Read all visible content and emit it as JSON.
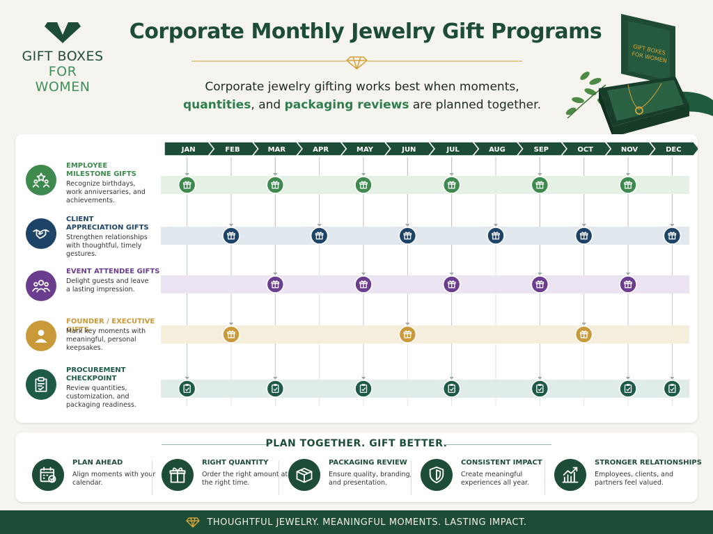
{
  "brand": {
    "line1": "GIFT BOXES",
    "line2": "FOR WOMEN",
    "colors": {
      "dark_green": "#1d4d36",
      "light_green": "#3f8f5a",
      "gold": "#d4a43a"
    }
  },
  "header": {
    "title": "Corporate Monthly Jewelry Gift Programs",
    "subtitle_parts": [
      {
        "text": "Corporate jewelry gifting works best when moments,",
        "highlight": false
      },
      {
        "text": "quantities",
        "highlight": true
      },
      {
        "text": ", and ",
        "highlight": false
      },
      {
        "text": "packaging reviews",
        "highlight": true
      },
      {
        "text": " are planned together.",
        "highlight": false
      }
    ]
  },
  "months": [
    "JAN",
    "FEB",
    "MAR",
    "APR",
    "MAY",
    "JUN",
    "JUL",
    "AUG",
    "SEP",
    "OCT",
    "NOV",
    "DEC"
  ],
  "rows": [
    {
      "title_lines": [
        "EMPLOYEE",
        "MILESTONE GIFTS"
      ],
      "desc": "Recognize birthdays, work anniversaries, and achievements.",
      "color": "#3e8a4e",
      "band": "#e6f1e6",
      "icon": "star-people-icon",
      "marker": "gift",
      "active_months": [
        "JAN",
        "MAR",
        "MAY",
        "JUL",
        "SEP",
        "NOV"
      ]
    },
    {
      "title_lines": [
        "CLIENT",
        "APPRECIATION GIFTS"
      ],
      "desc": "Strengthen relationships with thoughtful, timely gestures.",
      "color": "#1d4466",
      "band": "#e1e8ee",
      "icon": "handshake-icon",
      "marker": "gift",
      "active_months": [
        "FEB",
        "APR",
        "JUN",
        "AUG",
        "OCT",
        "DEC"
      ]
    },
    {
      "title_lines": [
        "EVENT ATTENDEE GIFTS"
      ],
      "desc": "Delight guests and leave a lasting impression.",
      "color": "#6b3d8e",
      "band": "#ede4f3",
      "icon": "group-icon",
      "marker": "gift",
      "active_months": [
        "MAR",
        "MAY",
        "JUL",
        "SEP",
        "NOV"
      ]
    },
    {
      "title_lines": [
        "FOUNDER / EXECUTIVE GIFTS"
      ],
      "desc": "Mark key moments with meaningful, personal keepsakes.",
      "color": "#c9993a",
      "band": "#f6eedd",
      "icon": "person-icon",
      "marker": "gift",
      "active_months": [
        "FEB",
        "JUN",
        "OCT"
      ]
    },
    {
      "title_lines": [
        "PROCUREMENT",
        "CHECKPOINT"
      ],
      "desc": "Review quantities, customization, and packaging readiness.",
      "color": "#1d5a48",
      "band": "#e0ece9",
      "icon": "clipboard-icon",
      "marker": "clipboard",
      "active_months": [
        "JAN",
        "MAR",
        "MAY",
        "JUL",
        "SEP",
        "NOV",
        "DEC"
      ]
    }
  ],
  "plan": {
    "heading": "PLAN TOGETHER. GIFT BETTER.",
    "tips": [
      {
        "title": "PLAN AHEAD",
        "desc": "Align moments with your calendar.",
        "icon": "calendar-icon"
      },
      {
        "title": "RIGHT QUANTITY",
        "desc": "Order the right amount at the right time.",
        "icon": "gift-icon"
      },
      {
        "title": "PACKAGING REVIEW",
        "desc": "Ensure quality, branding, and presentation.",
        "icon": "box-icon"
      },
      {
        "title": "CONSISTENT IMPACT",
        "desc": "Create meaningful experiences all year.",
        "icon": "shield-icon"
      },
      {
        "title": "STRONGER RELATIONSHIPS",
        "desc": "Employees, clients, and partners feel valued.",
        "icon": "growth-chart-icon"
      }
    ]
  },
  "footer": {
    "text": "THOUGHTFUL JEWELRY. MEANINGFUL MOMENTS. LASTING IMPACT."
  }
}
